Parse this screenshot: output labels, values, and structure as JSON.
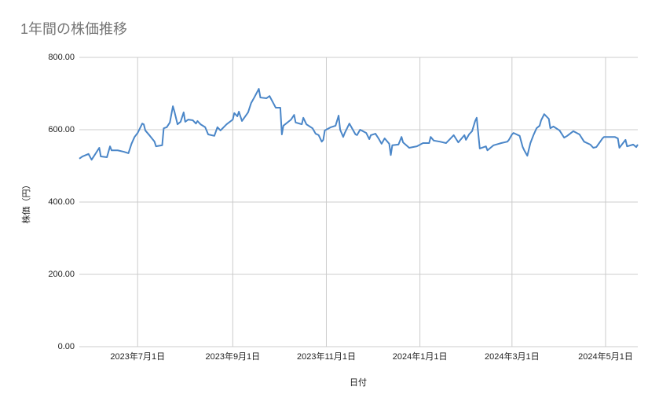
{
  "chart_data": {
    "type": "line",
    "title": "1年間の株価推移",
    "x_label": "日付",
    "y_label": "株価（円）",
    "color": "#4a86c8",
    "grid": true,
    "xlim": [
      "2023-05-24",
      "2024-05-22"
    ],
    "xticks": [
      {
        "value": "2023-07-01",
        "label": "2023年7月1日"
      },
      {
        "value": "2023-09-01",
        "label": "2023年9月1日"
      },
      {
        "value": "2023-11-01",
        "label": "2023年11月1日"
      },
      {
        "value": "2024-01-01",
        "label": "2024年1月1日"
      },
      {
        "value": "2024-03-01",
        "label": "2024年3月1日"
      },
      {
        "value": "2024-05-01",
        "label": "2024年5月1日"
      }
    ],
    "ylim": [
      0,
      800
    ],
    "yticks": [
      {
        "value": 0,
        "label": "0.00"
      },
      {
        "value": 200,
        "label": "200.00"
      },
      {
        "value": 400,
        "label": "400.00"
      },
      {
        "value": 600,
        "label": "600.00"
      },
      {
        "value": 800,
        "label": "800.00"
      }
    ],
    "x": [
      "2023-05-24",
      "2023-05-26",
      "2023-05-30",
      "2023-06-01",
      "2023-06-03",
      "2023-06-06",
      "2023-06-07",
      "2023-06-11",
      "2023-06-13",
      "2023-06-14",
      "2023-06-18",
      "2023-06-22",
      "2023-06-25",
      "2023-06-27",
      "2023-06-29",
      "2023-07-01",
      "2023-07-04",
      "2023-07-05",
      "2023-07-06",
      "2023-07-09",
      "2023-07-12",
      "2023-07-13",
      "2023-07-17",
      "2023-07-18",
      "2023-07-20",
      "2023-07-22",
      "2023-07-24",
      "2023-07-25",
      "2023-07-27",
      "2023-07-29",
      "2023-07-31",
      "2023-08-01",
      "2023-08-03",
      "2023-08-06",
      "2023-08-08",
      "2023-08-09",
      "2023-08-11",
      "2023-08-14",
      "2023-08-16",
      "2023-08-20",
      "2023-08-22",
      "2023-08-24",
      "2023-08-28",
      "2023-09-01",
      "2023-09-02",
      "2023-09-04",
      "2023-09-05",
      "2023-09-07",
      "2023-09-11",
      "2023-09-13",
      "2023-09-15",
      "2023-09-18",
      "2023-09-19",
      "2023-09-23",
      "2023-09-25",
      "2023-09-29",
      "2023-10-02",
      "2023-10-03",
      "2023-10-04",
      "2023-10-09",
      "2023-10-11",
      "2023-10-12",
      "2023-10-16",
      "2023-10-17",
      "2023-10-19",
      "2023-10-23",
      "2023-10-25",
      "2023-10-27",
      "2023-10-29",
      "2023-10-30",
      "2023-10-31",
      "2023-11-04",
      "2023-11-07",
      "2023-11-09",
      "2023-11-10",
      "2023-11-12",
      "2023-11-13",
      "2023-11-16",
      "2023-11-20",
      "2023-11-21",
      "2023-11-23",
      "2023-11-27",
      "2023-11-29",
      "2023-11-30",
      "2023-12-03",
      "2023-12-05",
      "2023-12-07",
      "2023-12-09",
      "2023-12-12",
      "2023-12-13",
      "2023-12-14",
      "2023-12-18",
      "2023-12-20",
      "2023-12-21",
      "2023-12-25",
      "2023-12-30",
      "2024-01-03",
      "2024-01-07",
      "2024-01-08",
      "2024-01-10",
      "2024-01-14",
      "2024-01-18",
      "2024-01-21",
      "2024-01-23",
      "2024-01-26",
      "2024-01-30",
      "2024-01-31",
      "2024-02-02",
      "2024-02-04",
      "2024-02-06",
      "2024-02-07",
      "2024-02-09",
      "2024-02-13",
      "2024-02-14",
      "2024-02-18",
      "2024-02-23",
      "2024-02-27",
      "2024-02-28",
      "2024-03-01",
      "2024-03-02",
      "2024-03-06",
      "2024-03-08",
      "2024-03-09",
      "2024-03-11",
      "2024-03-13",
      "2024-03-15",
      "2024-03-17",
      "2024-03-19",
      "2024-03-20",
      "2024-03-22",
      "2024-03-25",
      "2024-03-26",
      "2024-03-28",
      "2024-04-01",
      "2024-04-04",
      "2024-04-06",
      "2024-04-10",
      "2024-04-14",
      "2024-04-17",
      "2024-04-21",
      "2024-04-23",
      "2024-04-25",
      "2024-04-29",
      "2024-04-30",
      "2024-05-07",
      "2024-05-09",
      "2024-05-10",
      "2024-05-14",
      "2024-05-15",
      "2024-05-19",
      "2024-05-21",
      "2024-05-22"
    ],
    "values": [
      520,
      526,
      533,
      517,
      530,
      550,
      526,
      524,
      554,
      543,
      543,
      539,
      535,
      561,
      580,
      591,
      617,
      615,
      598,
      583,
      567,
      554,
      557,
      604,
      607,
      620,
      665,
      650,
      615,
      622,
      648,
      622,
      628,
      626,
      617,
      624,
      615,
      607,
      587,
      583,
      607,
      598,
      615,
      628,
      646,
      637,
      650,
      624,
      648,
      674,
      689,
      713,
      689,
      687,
      693,
      661,
      661,
      587,
      611,
      628,
      641,
      620,
      615,
      633,
      615,
      604,
      589,
      585,
      567,
      572,
      598,
      607,
      611,
      639,
      600,
      580,
      591,
      617,
      587,
      585,
      600,
      591,
      574,
      585,
      589,
      576,
      561,
      576,
      561,
      530,
      557,
      559,
      580,
      565,
      550,
      554,
      563,
      563,
      580,
      570,
      567,
      563,
      576,
      585,
      565,
      585,
      572,
      587,
      596,
      624,
      633,
      548,
      554,
      543,
      557,
      563,
      567,
      572,
      587,
      591,
      583,
      552,
      543,
      528,
      563,
      585,
      604,
      611,
      626,
      643,
      630,
      604,
      609,
      598,
      578,
      583,
      596,
      587,
      567,
      559,
      550,
      552,
      576,
      580,
      580,
      576,
      550,
      572,
      554,
      559,
      552,
      559
    ]
  }
}
